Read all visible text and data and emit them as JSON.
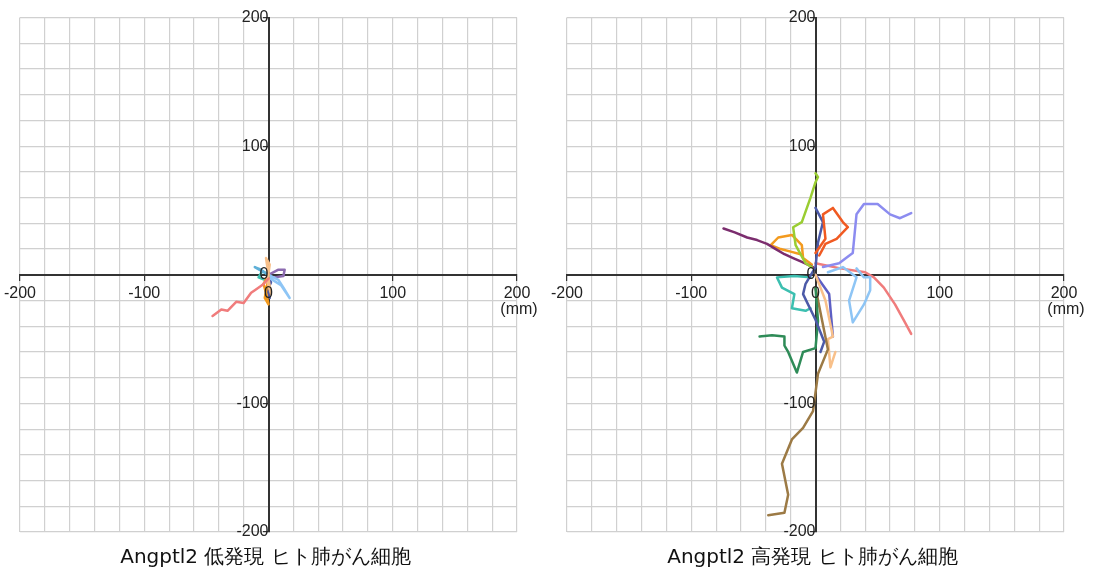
{
  "chart_data": [
    {
      "type": "line",
      "title": "Angptl2 低発現 ヒト肺がん細胞",
      "xlabel": "(mm)",
      "xlim": [
        -200,
        200
      ],
      "ylim": [
        -200,
        200
      ],
      "grid": true,
      "legend": false,
      "marker": "none",
      "line_style": "solid",
      "xticks": [
        -200,
        {
          "value": -180,
          "label": null
        },
        {
          "value": -160,
          "label": null
        },
        {
          "value": -140,
          "label": null
        },
        {
          "value": -120,
          "label": null
        },
        -100,
        {
          "value": -80,
          "label": null
        },
        {
          "value": -60,
          "label": null
        },
        {
          "value": -40,
          "label": null
        },
        {
          "value": -20,
          "label": null
        },
        0,
        {
          "value": 20,
          "label": null
        },
        {
          "value": 40,
          "label": null
        },
        {
          "value": 60,
          "label": null
        },
        {
          "value": 80,
          "label": null
        },
        100,
        {
          "value": 120,
          "label": null
        },
        {
          "value": 140,
          "label": null
        },
        {
          "value": 160,
          "label": null
        },
        {
          "value": 180,
          "label": null
        },
        200
      ],
      "yticks": [
        -200,
        {
          "value": -180,
          "label": null
        },
        {
          "value": -160,
          "label": null
        },
        {
          "value": -140,
          "label": null
        },
        {
          "value": -120,
          "label": null
        },
        -100,
        {
          "value": -80,
          "label": null
        },
        {
          "value": -60,
          "label": null
        },
        {
          "value": -40,
          "label": null
        },
        {
          "value": -20,
          "label": null
        },
        0,
        {
          "value": 20,
          "label": null
        },
        {
          "value": 40,
          "label": null
        },
        {
          "value": 60,
          "label": null
        },
        {
          "value": 80,
          "label": null
        },
        100,
        {
          "value": 120,
          "label": null
        },
        {
          "value": 140,
          "label": null
        },
        {
          "value": 160,
          "label": null
        },
        {
          "value": 180,
          "label": null
        },
        200
      ],
      "series": [
        {
          "color": "#f07c7c",
          "x": [
            -45,
            -38,
            -33,
            -26,
            -20,
            -14,
            -11,
            -5,
            0
          ],
          "values": [
            -32,
            -27,
            -28,
            -21,
            -22,
            -14,
            -12,
            -8,
            -3
          ]
        },
        {
          "color": "#f8c08a",
          "x": [
            0,
            -2,
            1,
            -1,
            2,
            0
          ],
          "values": [
            0,
            13,
            8,
            -5,
            -15,
            -3
          ]
        },
        {
          "color": "#f39a1e",
          "x": [
            0,
            -4,
            -2,
            0,
            -3,
            0
          ],
          "values": [
            0,
            -7,
            -14,
            -23,
            -18,
            -2
          ]
        },
        {
          "color": "#8ec5f5",
          "x": [
            0,
            8,
            12,
            17,
            10,
            0
          ],
          "values": [
            0,
            -4,
            -10,
            -18,
            -8,
            -2
          ]
        },
        {
          "color": "#5fb0d8",
          "x": [
            -2,
            -6,
            -11,
            -4
          ],
          "values": [
            1,
            4,
            6,
            2
          ]
        },
        {
          "color": "#8c6bb0",
          "x": [
            0,
            8,
            13,
            12,
            5
          ],
          "values": [
            0,
            4,
            4,
            -1,
            -2
          ]
        },
        {
          "color": "#3cbfb0",
          "x": [
            0,
            -5,
            -8,
            -3
          ],
          "values": [
            0,
            3,
            -2,
            -4
          ]
        },
        {
          "color": "#4c5aa8",
          "x": [
            0,
            2,
            -1,
            1
          ],
          "values": [
            0,
            -6,
            -12,
            -18
          ]
        }
      ]
    },
    {
      "type": "line",
      "title": "Angptl2 高発現 ヒト肺がん細胞",
      "xlabel": "(mm)",
      "xlim": [
        -200,
        200
      ],
      "ylim": [
        -200,
        200
      ],
      "grid": true,
      "legend": false,
      "marker": "none",
      "line_style": "solid",
      "xticks": [
        -200,
        {
          "value": -180,
          "label": null
        },
        {
          "value": -160,
          "label": null
        },
        {
          "value": -140,
          "label": null
        },
        {
          "value": -120,
          "label": null
        },
        -100,
        {
          "value": -80,
          "label": null
        },
        {
          "value": -60,
          "label": null
        },
        {
          "value": -40,
          "label": null
        },
        {
          "value": -20,
          "label": null
        },
        0,
        {
          "value": 20,
          "label": null
        },
        {
          "value": 40,
          "label": null
        },
        {
          "value": 60,
          "label": null
        },
        {
          "value": 80,
          "label": null
        },
        100,
        {
          "value": 120,
          "label": null
        },
        {
          "value": 140,
          "label": null
        },
        {
          "value": 160,
          "label": null
        },
        {
          "value": 180,
          "label": null
        },
        200
      ],
      "yticks": [
        -200,
        {
          "value": -180,
          "label": null
        },
        {
          "value": -160,
          "label": null
        },
        {
          "value": -140,
          "label": null
        },
        {
          "value": -120,
          "label": null
        },
        -100,
        {
          "value": -80,
          "label": null
        },
        {
          "value": -60,
          "label": null
        },
        {
          "value": -40,
          "label": null
        },
        {
          "value": -20,
          "label": null
        },
        0,
        {
          "value": 20,
          "label": null
        },
        {
          "value": 40,
          "label": null
        },
        {
          "value": 60,
          "label": null
        },
        {
          "value": 80,
          "label": null
        },
        100,
        {
          "value": 120,
          "label": null
        },
        {
          "value": 140,
          "label": null
        },
        {
          "value": 160,
          "label": null
        },
        {
          "value": 180,
          "label": null
        },
        200
      ],
      "series": [
        {
          "color": "#9acd32",
          "x": [
            -3,
            -8,
            -16,
            -18,
            -11,
            -4,
            0,
            2,
            0
          ],
          "values": [
            6,
            9,
            23,
            37,
            41,
            60,
            72,
            76,
            79
          ]
        },
        {
          "color": "#7b2d6e",
          "x": [
            -74,
            -65,
            -55,
            -47,
            -39,
            -32,
            -25,
            -18,
            -11,
            -2
          ],
          "values": [
            36,
            33,
            29,
            27,
            24,
            20,
            16,
            13,
            10,
            6
          ]
        },
        {
          "color": "#f39a1e",
          "x": [
            -3,
            -10,
            -11,
            -19,
            -30,
            -36,
            -28,
            -20,
            -12
          ],
          "values": [
            8,
            13,
            23,
            31,
            29,
            23,
            20,
            18,
            16
          ]
        },
        {
          "color": "#f05a22",
          "x": [
            3,
            8,
            17,
            26,
            22,
            14,
            6,
            8,
            0
          ],
          "values": [
            15,
            24,
            28,
            37,
            41,
            52,
            47,
            28,
            17
          ]
        },
        {
          "color": "#8c8cf0",
          "x": [
            6,
            19,
            30,
            33,
            39,
            50,
            60,
            68,
            77
          ],
          "values": [
            6,
            9,
            17,
            47,
            55,
            55,
            47,
            44,
            48
          ]
        },
        {
          "color": "#4c5aa8",
          "x": [
            0,
            6,
            2,
            0,
            -8,
            -10,
            0,
            7,
            4
          ],
          "values": [
            52,
            41,
            25,
            6,
            -7,
            -15,
            -35,
            -52,
            -60
          ]
        },
        {
          "color": "#8ec5f5",
          "x": [
            10,
            22,
            33,
            27,
            30,
            39,
            44,
            44,
            39,
            33
          ],
          "values": [
            2,
            6,
            -2,
            -20,
            -37,
            -23,
            -12,
            -2,
            -2,
            5
          ]
        },
        {
          "color": "#f07c7c",
          "x": [
            0,
            20,
            40,
            47,
            55,
            64,
            72,
            77
          ],
          "values": [
            9,
            5,
            2,
            -2,
            -10,
            -23,
            -37,
            -46
          ]
        },
        {
          "color": "#3cbfb0",
          "x": [
            -4,
            -17,
            -31,
            -27,
            -17,
            -19,
            -8,
            -4
          ],
          "values": [
            -2,
            -1,
            -2,
            -10,
            -15,
            -26,
            -28,
            -26
          ]
        },
        {
          "color": "#2e8b57",
          "x": [
            -45,
            -35,
            -25,
            -25,
            -22,
            -15,
            -10,
            0,
            2,
            0
          ],
          "values": [
            -48,
            -47,
            -48,
            -55,
            -60,
            -76,
            -60,
            -57,
            -36,
            -10
          ]
        },
        {
          "color": "#9c7a45",
          "x": [
            0,
            10,
            2,
            -2,
            -10,
            -19,
            -27,
            -22,
            -25,
            -38
          ],
          "values": [
            -10,
            -58,
            -77,
            -106,
            -119,
            -128,
            -147,
            -171,
            -185,
            -187
          ]
        },
        {
          "color": "#f8c08a",
          "x": [
            0,
            8,
            14,
            10,
            12,
            16
          ],
          "values": [
            0,
            -20,
            -48,
            -50,
            -72,
            -60
          ]
        },
        {
          "color": "#5d5fc4",
          "x": [
            0,
            11,
            14
          ],
          "values": [
            0,
            -15,
            -48
          ]
        }
      ]
    }
  ]
}
